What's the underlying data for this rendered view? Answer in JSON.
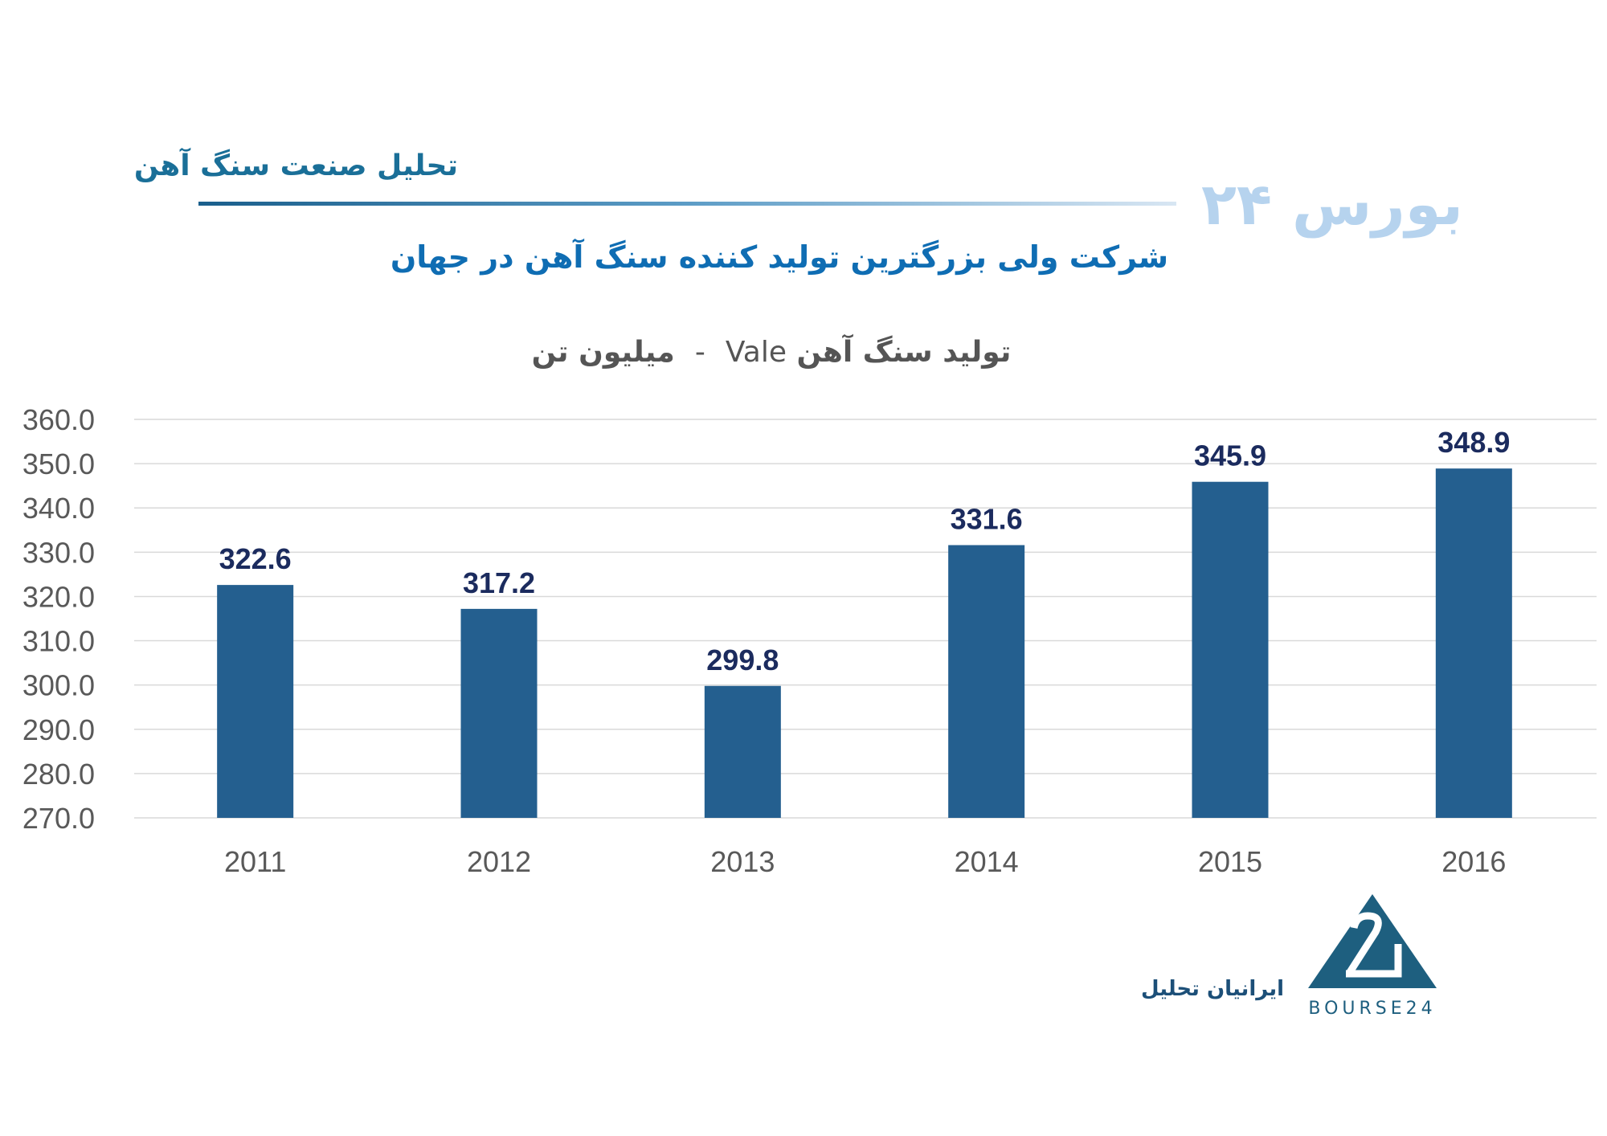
{
  "header": {
    "section_title": "تحلیل صنعت سنگ آهن",
    "watermark": "بورس ۲۴"
  },
  "title": "شرکت ولی بزرگترین تولید کننده سنگ آهن در جهان",
  "footer": {
    "company": "ایرانیان تحلیل",
    "logo_text": "BOURSE24"
  },
  "colors": {
    "bar": "#245f8f",
    "label": "#1b2b5e",
    "grid": "#d9d9d9",
    "axis_text": "#595959"
  },
  "chart_data": {
    "type": "bar",
    "title": "تولید سنگ آهن Vale - میلیون تن",
    "title_parts": {
      "fa1": "تولید سنگ آهن",
      "en": "Vale",
      "sep": "-",
      "fa2": "میلیون تن"
    },
    "categories": [
      "2011",
      "2012",
      "2013",
      "2014",
      "2015",
      "2016"
    ],
    "values": [
      322.6,
      317.2,
      299.8,
      331.6,
      345.9,
      348.9
    ],
    "data_labels": [
      "322.6",
      "317.2",
      "299.8",
      "331.6",
      "345.9",
      "348.9"
    ],
    "xlabel": "",
    "ylabel": "",
    "ylim": [
      270,
      360
    ],
    "yticks": [
      "270.0",
      "280.0",
      "290.0",
      "300.0",
      "310.0",
      "320.0",
      "330.0",
      "340.0",
      "350.0",
      "360.0"
    ],
    "grid": true,
    "legend": "none"
  }
}
